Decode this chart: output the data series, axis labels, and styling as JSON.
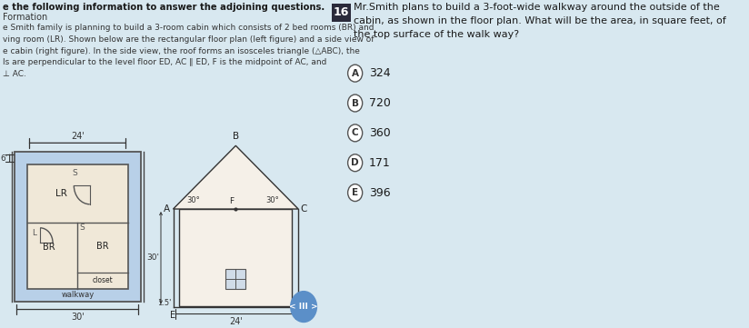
{
  "bg_color": "#d8e8f0",
  "left_header": "e the following information to answer the adjoining questions.",
  "subheader": "Formation",
  "body_text": "e Smith family is planning to build a 3-room cabin which consists of 2 bed rooms (BR) and\nving room (LR). Shown below are the rectangular floor plan (left figure) and a side view of\ne cabin (right figure). In the side view, the roof forms an isosceles triangle (△ABC), the\nls are perpendicular to the level floor ED, AC ∥ ED, F is the midpoint of AC, and\n⊥ AC.",
  "question_number": "16",
  "question_text": "Mr.Smith plans to build a 3-foot-wide walkway around the outside of the\ncabin, as shown in the floor plan. What will be the area, in square feet, of\nthe top surface of the walk way?",
  "choices": [
    {
      "label": "A",
      "text": "324"
    },
    {
      "label": "B",
      "text": "720"
    },
    {
      "label": "C",
      "text": "360"
    },
    {
      "label": "D",
      "text": "171"
    },
    {
      "label": "E",
      "text": "396"
    }
  ],
  "walkway_color": "#b8d0e8",
  "cabin_inner_color": "#f0e8d8",
  "cabin_border": "#555555",
  "nav_color": "#5b8fc8"
}
